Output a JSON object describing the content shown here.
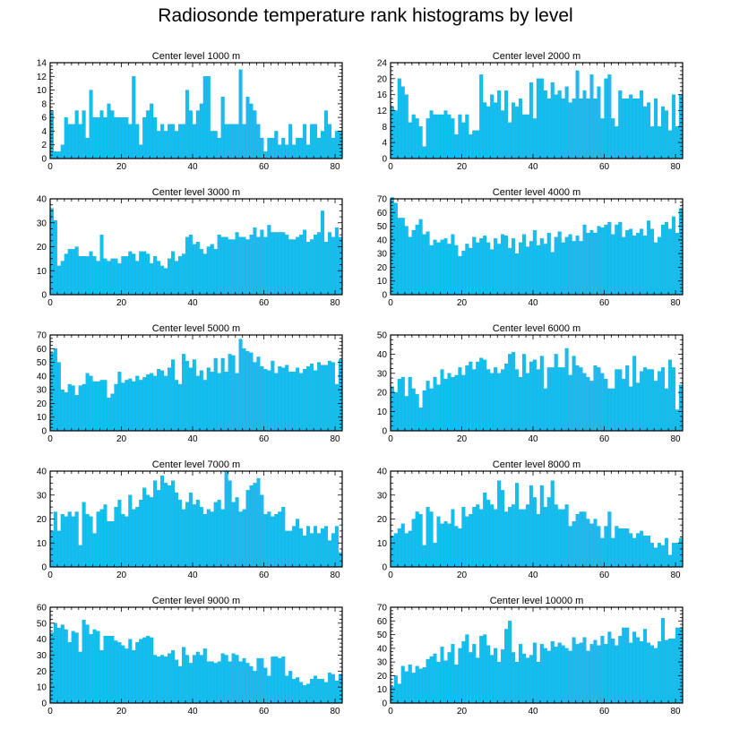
{
  "title": "Radiosonde temperature rank histograms by level",
  "colors": {
    "bar": "#12bff0",
    "bar_edge": "#0a9ec9",
    "axis": "#000000",
    "background": "#ffffff"
  },
  "chart_data": [
    {
      "type": "bar",
      "title": "Center level 1000 m",
      "xlabel": "",
      "ylabel": "",
      "xlim": [
        0,
        82
      ],
      "ylim": [
        0,
        14
      ],
      "xticks": [
        0,
        20,
        40,
        60,
        80
      ],
      "yticks": [
        0,
        2,
        4,
        6,
        8,
        10,
        12,
        14
      ],
      "values": [
        7,
        1,
        1,
        2,
        6,
        5,
        5,
        7,
        5,
        7,
        3,
        10,
        6,
        6,
        7,
        6,
        8,
        7,
        6,
        6,
        6,
        6,
        5,
        12,
        5,
        2,
        6,
        7,
        8,
        6,
        4,
        5,
        4,
        5,
        5,
        4,
        5,
        5,
        10,
        7,
        5,
        7,
        8,
        12,
        12,
        4,
        4,
        3,
        9,
        5,
        5,
        5,
        5,
        13,
        5,
        9,
        8,
        7,
        5,
        3,
        1,
        3,
        3,
        4,
        2,
        3,
        2,
        5,
        2,
        3,
        3,
        5,
        2,
        5,
        5,
        3,
        4,
        7,
        5,
        3,
        4,
        4
      ]
    },
    {
      "type": "bar",
      "title": "Center level 2000 m",
      "xlabel": "",
      "ylabel": "",
      "xlim": [
        0,
        82
      ],
      "ylim": [
        0,
        24
      ],
      "xticks": [
        0,
        20,
        40,
        60,
        80
      ],
      "yticks": [
        0,
        4,
        8,
        12,
        16,
        20,
        24
      ],
      "values": [
        13,
        12,
        20,
        18,
        16,
        9,
        11,
        10,
        8,
        3,
        10,
        12,
        11,
        11,
        11,
        12,
        11,
        10,
        6,
        11,
        9,
        11,
        6,
        7,
        7,
        21,
        14,
        13,
        16,
        14,
        17,
        12,
        17,
        9,
        14,
        13,
        15,
        11,
        11,
        19,
        10,
        20,
        20,
        17,
        15,
        19,
        16,
        17,
        15,
        18,
        14,
        15,
        22,
        15,
        17,
        15,
        21,
        15,
        18,
        10,
        20,
        21,
        10,
        8,
        17,
        15,
        15,
        16,
        15,
        15,
        17,
        13,
        14,
        8,
        15,
        8,
        13,
        12,
        7,
        16,
        8,
        16
      ]
    },
    {
      "type": "bar",
      "title": "Center level 3000 m",
      "xlabel": "",
      "ylabel": "",
      "xlim": [
        0,
        82
      ],
      "ylim": [
        0,
        40
      ],
      "xticks": [
        0,
        20,
        40,
        60,
        80
      ],
      "yticks": [
        0,
        10,
        20,
        30,
        40
      ],
      "values": [
        36,
        31,
        12,
        14,
        17,
        19,
        19,
        20,
        16,
        16,
        16,
        18,
        16,
        14,
        25,
        15,
        14,
        15,
        15,
        13,
        16,
        16,
        18,
        17,
        14,
        18,
        18,
        17,
        13,
        16,
        14,
        12,
        11,
        15,
        18,
        14,
        16,
        17,
        24,
        25,
        21,
        22,
        19,
        17,
        20,
        21,
        19,
        25,
        24,
        24,
        23,
        23,
        26,
        24,
        24,
        23,
        25,
        28,
        24,
        27,
        24,
        29,
        26,
        26,
        26,
        26,
        25,
        23,
        23,
        24,
        25,
        27,
        22,
        23,
        25,
        26,
        35,
        22,
        26,
        24,
        28,
        24
      ]
    },
    {
      "type": "bar",
      "title": "Center level 4000 m",
      "xlabel": "",
      "ylabel": "",
      "xlim": [
        0,
        82
      ],
      "ylim": [
        0,
        70
      ],
      "xticks": [
        0,
        20,
        40,
        60,
        80
      ],
      "yticks": [
        0,
        10,
        20,
        30,
        40,
        50,
        60,
        70
      ],
      "values": [
        71,
        67,
        56,
        56,
        50,
        42,
        47,
        51,
        55,
        44,
        46,
        36,
        40,
        38,
        40,
        41,
        37,
        44,
        36,
        28,
        32,
        37,
        34,
        42,
        38,
        41,
        43,
        38,
        33,
        41,
        37,
        44,
        43,
        34,
        41,
        30,
        38,
        44,
        35,
        39,
        47,
        36,
        41,
        37,
        45,
        31,
        42,
        46,
        38,
        42,
        44,
        39,
        43,
        39,
        51,
        45,
        47,
        45,
        50,
        49,
        51,
        53,
        44,
        51,
        53,
        42,
        47,
        48,
        43,
        45,
        48,
        43,
        54,
        48,
        38,
        42,
        51,
        53,
        48,
        57,
        45,
        63
      ]
    },
    {
      "type": "bar",
      "title": "Center level 5000 m",
      "xlabel": "",
      "ylabel": "",
      "xlim": [
        0,
        82
      ],
      "ylim": [
        0,
        70
      ],
      "xticks": [
        0,
        20,
        40,
        60,
        80
      ],
      "yticks": [
        0,
        10,
        20,
        30,
        40,
        50,
        60,
        70
      ],
      "values": [
        57,
        60,
        50,
        30,
        28,
        34,
        33,
        26,
        33,
        34,
        42,
        40,
        36,
        36,
        37,
        37,
        24,
        27,
        34,
        43,
        35,
        37,
        38,
        36,
        40,
        37,
        39,
        41,
        42,
        40,
        45,
        44,
        40,
        46,
        52,
        37,
        34,
        56,
        51,
        46,
        52,
        40,
        44,
        37,
        46,
        43,
        53,
        42,
        53,
        43,
        56,
        55,
        42,
        67,
        60,
        58,
        57,
        50,
        54,
        47,
        45,
        44,
        51,
        42,
        47,
        46,
        48,
        43,
        43,
        46,
        42,
        45,
        47,
        49,
        44,
        50,
        48,
        48,
        51,
        50,
        34,
        52
      ]
    },
    {
      "type": "bar",
      "title": "Center level 6000 m",
      "xlabel": "",
      "ylabel": "",
      "xlim": [
        0,
        82
      ],
      "ylim": [
        0,
        50
      ],
      "xticks": [
        0,
        20,
        40,
        60,
        80
      ],
      "yticks": [
        0,
        10,
        20,
        30,
        40,
        50
      ],
      "values": [
        23,
        20,
        27,
        28,
        18,
        28,
        22,
        19,
        12,
        21,
        26,
        22,
        28,
        24,
        32,
        27,
        30,
        28,
        29,
        33,
        29,
        34,
        36,
        32,
        36,
        38,
        37,
        32,
        30,
        33,
        30,
        32,
        35,
        40,
        41,
        32,
        28,
        40,
        30,
        36,
        37,
        32,
        39,
        22,
        33,
        33,
        40,
        33,
        33,
        43,
        29,
        39,
        34,
        33,
        30,
        28,
        26,
        34,
        33,
        30,
        27,
        22,
        22,
        32,
        32,
        27,
        34,
        23,
        39,
        25,
        31,
        33,
        32,
        32,
        26,
        31,
        33,
        22,
        37,
        33,
        11,
        24
      ]
    },
    {
      "type": "bar",
      "title": "Center level 7000 m",
      "xlabel": "",
      "ylabel": "",
      "xlim": [
        0,
        82
      ],
      "ylim": [
        0,
        40
      ],
      "xticks": [
        0,
        20,
        40,
        60,
        80
      ],
      "yticks": [
        0,
        10,
        20,
        30,
        40
      ],
      "values": [
        15,
        23,
        15,
        22,
        21,
        23,
        21,
        23,
        9,
        27,
        22,
        21,
        14,
        23,
        24,
        26,
        19,
        19,
        25,
        28,
        22,
        21,
        30,
        24,
        25,
        28,
        33,
        30,
        29,
        36,
        32,
        38,
        35,
        34,
        36,
        31,
        28,
        24,
        27,
        31,
        26,
        28,
        25,
        22,
        24,
        23,
        27,
        28,
        24,
        40,
        36,
        27,
        29,
        23,
        24,
        32,
        34,
        35,
        37,
        30,
        22,
        23,
        21,
        22,
        23,
        25,
        15,
        15,
        17,
        20,
        16,
        13,
        17,
        14,
        17,
        14,
        16,
        17,
        11,
        14,
        17,
        6
      ]
    },
    {
      "type": "bar",
      "title": "Center level 8000 m",
      "xlabel": "",
      "ylabel": "",
      "xlim": [
        0,
        82
      ],
      "ylim": [
        0,
        40
      ],
      "xticks": [
        0,
        20,
        40,
        60,
        80
      ],
      "yticks": [
        0,
        10,
        20,
        30,
        40
      ],
      "values": [
        13,
        14,
        16,
        18,
        14,
        15,
        20,
        23,
        22,
        9,
        25,
        23,
        10,
        21,
        18,
        19,
        18,
        24,
        17,
        16,
        25,
        21,
        22,
        25,
        26,
        24,
        31,
        28,
        26,
        24,
        36,
        32,
        23,
        25,
        26,
        35,
        24,
        24,
        26,
        34,
        29,
        22,
        34,
        25,
        29,
        36,
        26,
        24,
        24,
        26,
        17,
        19,
        22,
        23,
        23,
        20,
        18,
        20,
        17,
        12,
        17,
        23,
        12,
        17,
        16,
        16,
        16,
        14,
        12,
        14,
        15,
        13,
        13,
        10,
        8,
        10,
        9,
        12,
        5,
        10,
        10,
        12
      ]
    },
    {
      "type": "bar",
      "title": "Center level 9000 m",
      "xlabel": "",
      "ylabel": "",
      "xlim": [
        0,
        82
      ],
      "ylim": [
        0,
        60
      ],
      "xticks": [
        0,
        20,
        40,
        60,
        80
      ],
      "yticks": [
        0,
        10,
        20,
        30,
        40,
        50,
        60
      ],
      "values": [
        44,
        50,
        47,
        49,
        46,
        38,
        45,
        44,
        32,
        52,
        49,
        43,
        46,
        45,
        33,
        42,
        42,
        42,
        39,
        38,
        36,
        34,
        40,
        33,
        38,
        40,
        41,
        42,
        41,
        30,
        29,
        30,
        29,
        31,
        33,
        27,
        23,
        35,
        30,
        25,
        30,
        32,
        30,
        34,
        26,
        26,
        25,
        26,
        31,
        30,
        26,
        31,
        30,
        26,
        28,
        25,
        23,
        20,
        28,
        28,
        22,
        17,
        29,
        29,
        28,
        29,
        17,
        20,
        15,
        16,
        13,
        11,
        12,
        15,
        17,
        15,
        15,
        13,
        19,
        18,
        14,
        18
      ]
    },
    {
      "type": "bar",
      "title": "Center level 10000 m",
      "xlabel": "",
      "ylabel": "",
      "xlim": [
        0,
        82
      ],
      "ylim": [
        0,
        70
      ],
      "xticks": [
        0,
        20,
        40,
        60,
        80
      ],
      "yticks": [
        0,
        10,
        20,
        30,
        40,
        50,
        60,
        70
      ],
      "values": [
        12,
        20,
        14,
        27,
        23,
        28,
        22,
        27,
        25,
        26,
        32,
        34,
        36,
        30,
        41,
        31,
        37,
        43,
        28,
        40,
        45,
        50,
        37,
        43,
        33,
        49,
        50,
        42,
        35,
        40,
        30,
        39,
        54,
        60,
        37,
        30,
        43,
        36,
        33,
        35,
        44,
        30,
        43,
        40,
        38,
        45,
        41,
        44,
        42,
        40,
        38,
        48,
        43,
        44,
        48,
        38,
        43,
        46,
        42,
        49,
        43,
        52,
        47,
        42,
        49,
        55,
        55,
        44,
        52,
        48,
        45,
        54,
        44,
        42,
        40,
        45,
        62,
        46,
        47,
        47,
        55,
        55
      ]
    }
  ]
}
